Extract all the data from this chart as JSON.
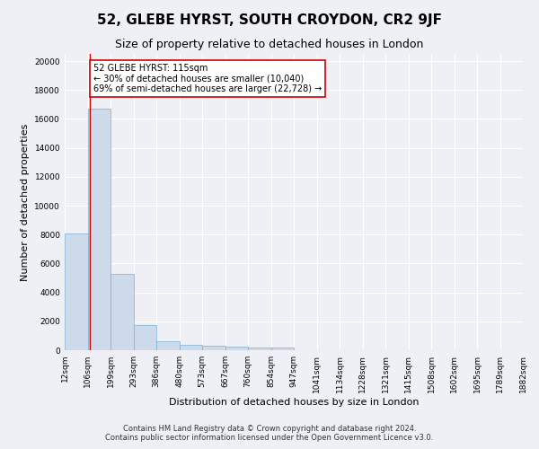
{
  "title": "52, GLEBE HYRST, SOUTH CROYDON, CR2 9JF",
  "subtitle": "Size of property relative to detached houses in London",
  "xlabel": "Distribution of detached houses by size in London",
  "ylabel": "Number of detached properties",
  "footer_line1": "Contains HM Land Registry data © Crown copyright and database right 2024.",
  "footer_line2": "Contains public sector information licensed under the Open Government Licence v3.0.",
  "bar_color": "#cddaea",
  "bar_edge_color": "#7bafd4",
  "annotation_text": "52 GLEBE HYRST: 115sqm\n← 30% of detached houses are smaller (10,040)\n69% of semi-detached houses are larger (22,728) →",
  "annotation_box_color": "#ffffff",
  "annotation_box_edge_color": "#cc0000",
  "vline_color": "#cc0000",
  "vline_x": 115,
  "bin_edges": [
    12,
    106,
    199,
    293,
    386,
    480,
    573,
    667,
    760,
    854,
    947,
    1041,
    1134,
    1228,
    1321,
    1415,
    1508,
    1602,
    1695,
    1789,
    1882
  ],
  "bin_labels": [
    "12sqm",
    "106sqm",
    "199sqm",
    "293sqm",
    "386sqm",
    "480sqm",
    "573sqm",
    "667sqm",
    "760sqm",
    "854sqm",
    "947sqm",
    "1041sqm",
    "1134sqm",
    "1228sqm",
    "1321sqm",
    "1415sqm",
    "1508sqm",
    "1602sqm",
    "1695sqm",
    "1789sqm",
    "1882sqm"
  ],
  "bar_heights": [
    8100,
    16700,
    5300,
    1750,
    650,
    350,
    280,
    220,
    200,
    170,
    0,
    0,
    0,
    0,
    0,
    0,
    0,
    0,
    0,
    0
  ],
  "ylim": [
    0,
    20500
  ],
  "yticks": [
    0,
    2000,
    4000,
    6000,
    8000,
    10000,
    12000,
    14000,
    16000,
    18000,
    20000
  ],
  "background_color": "#eef0f5",
  "grid_color": "#ffffff",
  "title_fontsize": 11,
  "subtitle_fontsize": 9,
  "axis_fontsize": 8,
  "tick_fontsize": 6.5,
  "footer_fontsize": 6
}
